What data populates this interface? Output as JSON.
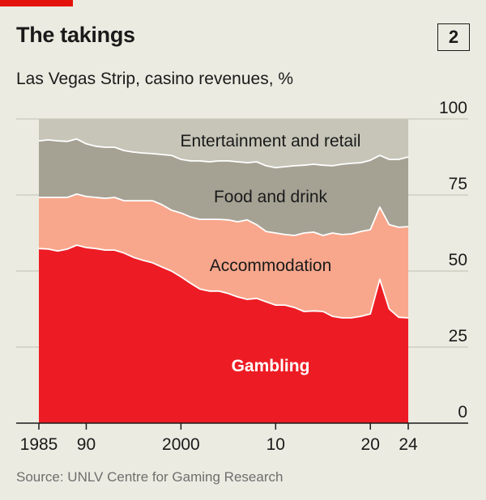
{
  "header": {
    "title": "The takings",
    "chart_number": "2",
    "subtitle": "Las Vegas Strip, casino revenues, %"
  },
  "source": "Source: UNLV Centre for Gaming Research",
  "colors": {
    "gambling": "#ED1C24",
    "accommodation": "#F8A78C",
    "food_and_drink": "#A5A294",
    "entertainment_and_retail": "#C6C5B8",
    "accent": "#E3120B",
    "background": "#ECEBE1"
  },
  "chart_data": {
    "type": "area",
    "stacked": true,
    "title": "The takings",
    "subtitle": "Las Vegas Strip, casino revenues, %",
    "xlabel": "",
    "ylabel": "",
    "xlim": [
      1985,
      2024
    ],
    "ylim": [
      0,
      100
    ],
    "y_ticks": [
      0,
      25,
      50,
      75,
      100
    ],
    "x_tick_labels": [
      {
        "year": 1985,
        "label": "1985"
      },
      {
        "year": 1990,
        "label": "90"
      },
      {
        "year": 2000,
        "label": "2000"
      },
      {
        "year": 2010,
        "label": "10"
      },
      {
        "year": 2020,
        "label": "20"
      },
      {
        "year": 2024,
        "label": "24"
      }
    ],
    "grid": true,
    "y_axis_side": "right",
    "x": [
      1985,
      1986,
      1987,
      1988,
      1989,
      1990,
      1991,
      1992,
      1993,
      1994,
      1995,
      1996,
      1997,
      1998,
      1999,
      2000,
      2001,
      2002,
      2003,
      2004,
      2005,
      2006,
      2007,
      2008,
      2009,
      2010,
      2011,
      2012,
      2013,
      2014,
      2015,
      2016,
      2017,
      2018,
      2019,
      2020,
      2021,
      2022,
      2023,
      2024
    ],
    "series": [
      {
        "name": "Gambling",
        "values": [
          57.4,
          57.2,
          56.6,
          57.2,
          58.5,
          57.7,
          57.4,
          56.9,
          56.9,
          55.9,
          54.5,
          53.5,
          52.7,
          51.3,
          50.0,
          48.1,
          46.0,
          44.1,
          43.4,
          43.4,
          42.6,
          41.5,
          40.7,
          41.0,
          39.9,
          38.8,
          38.8,
          38.0,
          36.7,
          36.9,
          36.7,
          35.1,
          34.6,
          34.6,
          35.1,
          35.9,
          47.3,
          37.5,
          34.8,
          34.6
        ]
      },
      {
        "name": "Accommodation",
        "values": [
          16.8,
          17.0,
          17.6,
          17.0,
          16.8,
          16.8,
          16.8,
          17.0,
          17.3,
          17.2,
          18.6,
          19.6,
          20.4,
          20.5,
          20.0,
          21.0,
          21.8,
          22.9,
          23.6,
          23.6,
          24.2,
          24.7,
          26.1,
          24.2,
          23.1,
          23.7,
          23.2,
          23.7,
          25.8,
          25.9,
          25.0,
          27.4,
          27.4,
          27.6,
          27.9,
          27.7,
          23.7,
          27.7,
          29.6,
          30.0
        ]
      },
      {
        "name": "Food and drink",
        "values": [
          18.6,
          18.9,
          18.6,
          18.4,
          18.1,
          17.3,
          16.8,
          16.8,
          16.5,
          16.5,
          16.0,
          15.7,
          15.5,
          16.5,
          18.0,
          17.6,
          18.4,
          19.2,
          18.9,
          19.2,
          19.4,
          19.7,
          18.8,
          20.7,
          21.6,
          21.5,
          22.3,
          22.9,
          22.3,
          22.3,
          23.1,
          22.1,
          23.1,
          23.2,
          22.6,
          22.8,
          17.0,
          21.5,
          22.3,
          22.9
        ]
      },
      {
        "name": "Entertainment and retail",
        "values": [
          7.2,
          6.9,
          7.2,
          7.4,
          6.6,
          8.2,
          9.0,
          9.3,
          9.3,
          10.4,
          10.9,
          11.2,
          11.4,
          11.7,
          12.0,
          13.3,
          13.8,
          13.8,
          14.1,
          13.8,
          13.8,
          14.1,
          14.4,
          14.1,
          15.4,
          16.0,
          15.7,
          15.4,
          15.2,
          14.9,
          15.2,
          15.4,
          14.9,
          14.6,
          14.4,
          13.6,
          12.0,
          13.3,
          13.3,
          12.5
        ]
      }
    ]
  }
}
